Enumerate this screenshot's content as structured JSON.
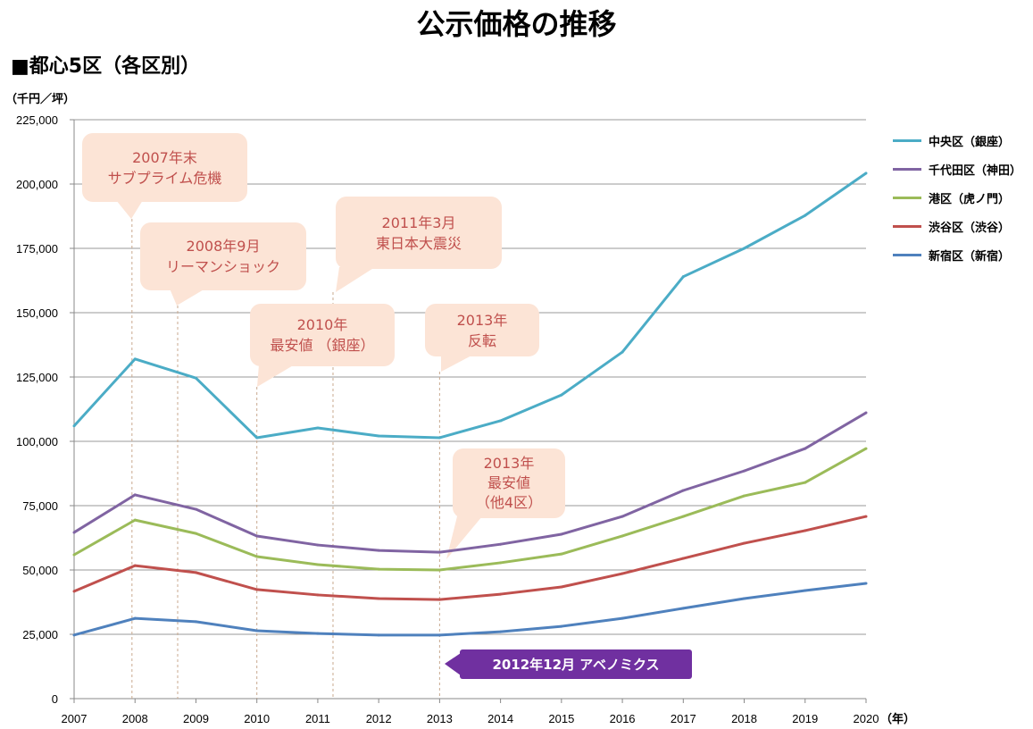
{
  "chart_data": {
    "type": "line",
    "title": "公示価格の推移",
    "subtitle": "■都心5区（各区別）",
    "ylabel": "（千円／坪）",
    "xlabel": "（年）",
    "ylim": [
      0,
      225000
    ],
    "yticks": [
      "0",
      "25,000",
      "50,000",
      "75,000",
      "100,000",
      "125,000",
      "150,000",
      "175,000",
      "200,000",
      "225,000"
    ],
    "x": [
      2007,
      2008,
      2009,
      2010,
      2011,
      2012,
      2013,
      2014,
      2015,
      2016,
      2017,
      2018,
      2019,
      2020
    ],
    "grid": true,
    "legend_position": "right",
    "series": [
      {
        "name": "中央区（銀座）",
        "color": "#4bacc6",
        "values": [
          106000,
          132000,
          124600,
          101400,
          105200,
          102100,
          101400,
          108000,
          118000,
          134700,
          164000,
          175000,
          187800,
          204200
        ]
      },
      {
        "name": "千代田区（神田）",
        "color": "#8064a2",
        "values": [
          64600,
          79200,
          73600,
          63200,
          59700,
          57600,
          56900,
          60000,
          63900,
          70800,
          80900,
          88500,
          97200,
          111100
        ]
      },
      {
        "name": "港区（虎ノ門）",
        "color": "#9bbb59",
        "values": [
          55900,
          69400,
          64200,
          55200,
          52100,
          50300,
          50000,
          52800,
          56200,
          63200,
          70800,
          78800,
          84000,
          97200
        ]
      },
      {
        "name": "渋谷区（渋谷）",
        "color": "#c0504d",
        "values": [
          41700,
          51700,
          49000,
          42400,
          40300,
          38900,
          38500,
          40600,
          43400,
          48600,
          54500,
          60400,
          65300,
          70800
        ]
      },
      {
        "name": "新宿区（新宿）",
        "color": "#4f81bd",
        "values": [
          24700,
          31200,
          29900,
          26400,
          25300,
          24700,
          24700,
          26000,
          28100,
          31200,
          35100,
          38900,
          42000,
          44800
        ]
      }
    ],
    "annotations": [
      {
        "lines": [
          "2007年末",
          "サブプライム危機"
        ],
        "at": 2007.95
      },
      {
        "lines": [
          "2008年9月",
          "リーマンショック"
        ],
        "at": 2008.7
      },
      {
        "lines": [
          "2011年3月",
          "東日本大震災"
        ],
        "at": 2011.25
      },
      {
        "lines": [
          "2010年",
          "最安値 （銀座）"
        ],
        "at": 2010
      },
      {
        "lines": [
          "2013年",
          "反転"
        ],
        "at": 2013
      },
      {
        "lines": [
          "2013年",
          "最安値",
          "（他4区）"
        ],
        "at": 2013
      },
      {
        "lines": [
          "2012年12月 アベノミクス"
        ],
        "at": 2013
      }
    ],
    "callout_color": "#fce4d6",
    "callout_text_color": "#c0504d",
    "abenomics_color": "#7030a0"
  }
}
